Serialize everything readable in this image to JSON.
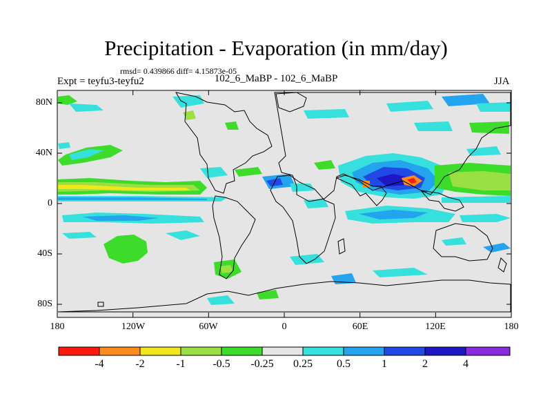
{
  "title": "Precipitation - Evaporation (in mm/day)",
  "stats": "rmsd= 0.439866 diff= 4.15873e-05",
  "subtitle": "102_6_MaBP - 102_6_MaBP",
  "experiment": "Expt = teyfu3-teyfu2",
  "season": "JJA",
  "lat_labels": [
    "80N",
    "40N",
    "0",
    "40S",
    "80S"
  ],
  "lon_labels": [
    "180",
    "120W",
    "60W",
    "0",
    "60E",
    "120E",
    "180"
  ],
  "colorbar": {
    "labels": [
      "-4",
      "-2",
      "-1",
      "-0.5",
      "-0.25",
      "0.25",
      "0.5",
      "1",
      "2",
      "4"
    ],
    "colors": [
      "#ff1a10",
      "#ff8c1a",
      "#f0e81c",
      "#9be043",
      "#3ddc2b",
      "#e5e5e5",
      "#35e0dd",
      "#24a3ee",
      "#2049e5",
      "#1c18c4",
      "#8a2be2"
    ]
  }
}
